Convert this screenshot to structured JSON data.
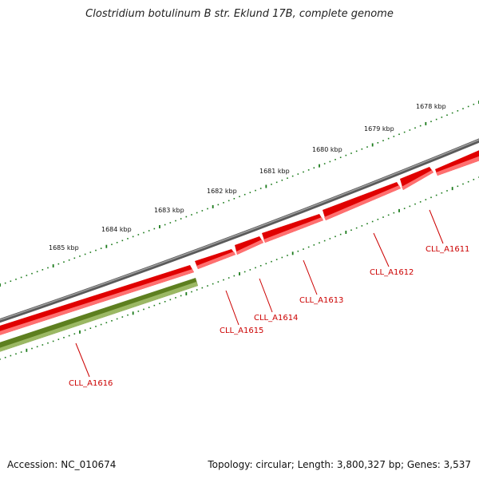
{
  "title": "Clostridium botulinum B str. Eklund 17B, complete genome",
  "footer": {
    "accession": "Accession: NC_010674",
    "summary": "Topology: circular; Length: 3,800,327 bp; Genes: 3,537"
  },
  "kbp_ticks": [
    "1678 kbp",
    "1679 kbp",
    "1680 kbp",
    "1681 kbp",
    "1682 kbp",
    "1683 kbp",
    "1684 kbp",
    "1685 kbp"
  ],
  "genes": [
    {
      "label": "CLL_A1611",
      "strand": "forward"
    },
    {
      "label": "CLL_A1612",
      "strand": "forward"
    },
    {
      "label": "CLL_A1613",
      "strand": "forward"
    },
    {
      "label": "CLL_A1614",
      "strand": "forward"
    },
    {
      "label": "CLL_A1615",
      "strand": "forward"
    },
    {
      "label": "CLL_A1616",
      "strand": "reverse"
    }
  ],
  "colors": {
    "backbone": "#808080",
    "forward_gene": "#ee0000",
    "reverse_gene": "#6b8e23",
    "tick": "#1a7a1a",
    "label": "#cc0000"
  }
}
